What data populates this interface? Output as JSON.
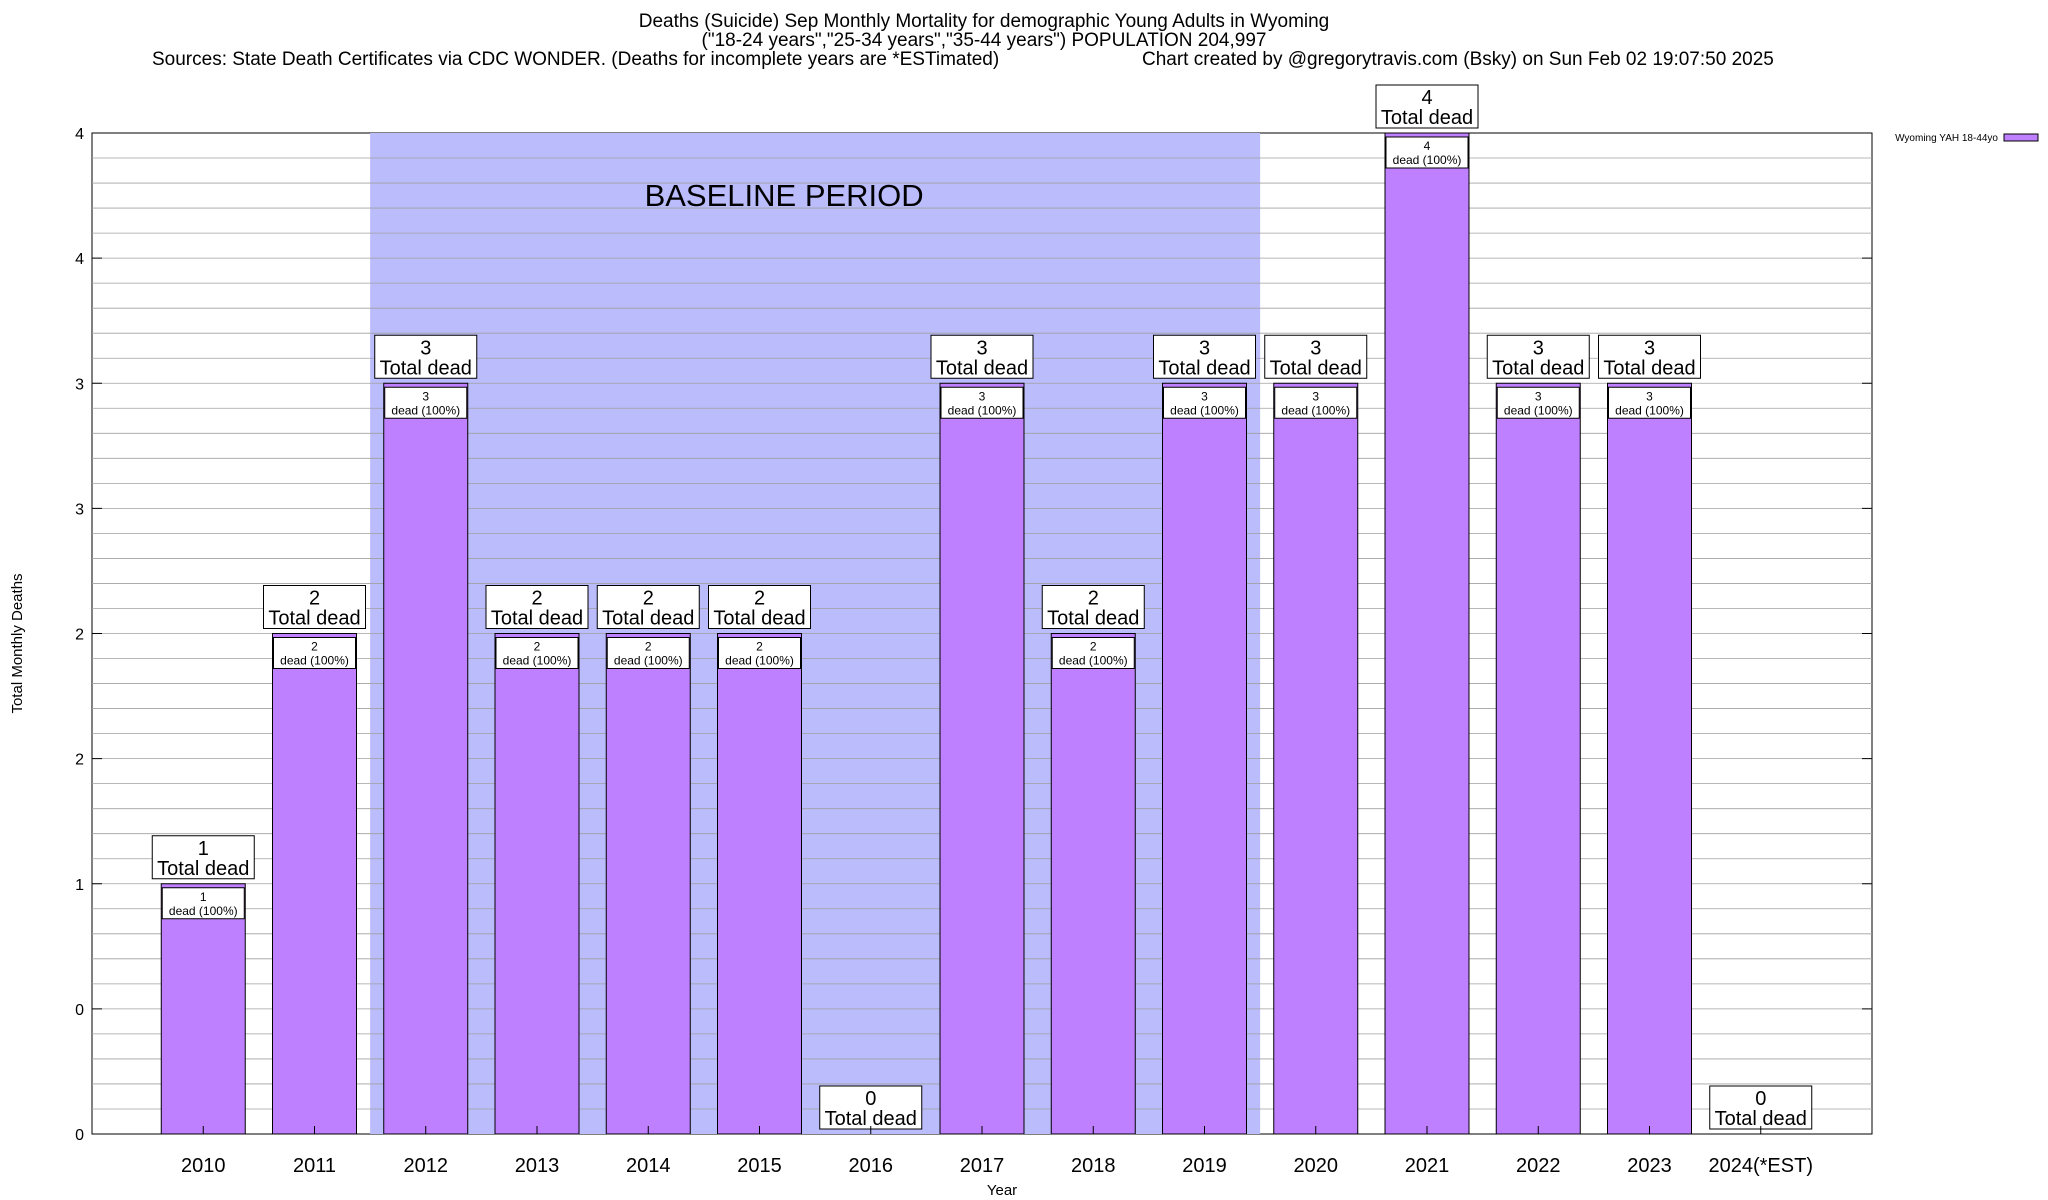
{
  "title": {
    "line1": "Deaths (Suicide) Sep Monthly Mortality for demographic Young Adults in Wyoming",
    "line2": "(\"18-24 years\",\"25-34 years\",\"35-44 years\") POPULATION 204,997",
    "sources": "Sources: State Death Certificates via CDC WONDER. (Deaths for incomplete years are *ESTimated)",
    "credit": "Chart created by @gregorytravis.com (Bsky) on Sun Feb 02 19:07:50 2025"
  },
  "chart_data": {
    "type": "bar",
    "xlabel": "Year",
    "ylabel": "Total Monthly Deaths",
    "ylim": [
      0,
      4
    ],
    "y_tick_labels": [
      "0",
      "0",
      "1",
      "2",
      "2",
      "3",
      "3",
      "4",
      "4"
    ],
    "grid": "horizontal",
    "legend": {
      "position": "top-right",
      "label": "Wyoming YAH 18-44yo"
    },
    "baseline_period": {
      "label": "BASELINE PERIOD",
      "from": "2012",
      "to": "2019",
      "color": "#bbbcfb"
    },
    "bar_color": "#bf80ff",
    "categories": [
      "2010",
      "2011",
      "2012",
      "2013",
      "2014",
      "2015",
      "2016",
      "2017",
      "2018",
      "2019",
      "2020",
      "2021",
      "2022",
      "2023",
      "2024(*EST)"
    ],
    "values": [
      1,
      2,
      3,
      2,
      2,
      2,
      0,
      3,
      2,
      3,
      3,
      4,
      3,
      3,
      0
    ],
    "total_labels": [
      "1",
      "2",
      "3",
      "2",
      "2",
      "2",
      "0",
      "3",
      "2",
      "3",
      "3",
      "4",
      "3",
      "3",
      "0"
    ],
    "total_suffix": "Total dead",
    "inner_labels": [
      "1",
      "2",
      "3",
      "2",
      "2",
      "2",
      "",
      "3",
      "2",
      "3",
      "3",
      "4",
      "3",
      "3",
      ""
    ],
    "inner_suffix": "dead (100%)"
  }
}
